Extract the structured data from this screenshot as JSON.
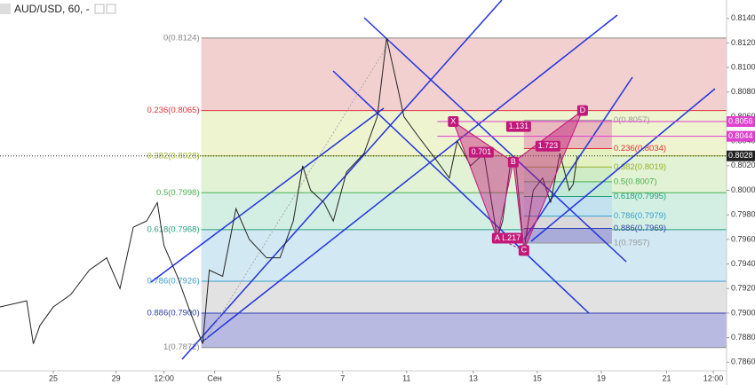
{
  "chart_data": {
    "type": "line",
    "title": "AUD/USD, 60, -",
    "xlim": [
      0,
      545
    ],
    "xticks": [
      {
        "value": 40,
        "label": "25"
      },
      {
        "value": 87,
        "label": "29"
      },
      {
        "value": 123,
        "label": "12:00"
      },
      {
        "value": 161,
        "label": "Сен"
      },
      {
        "value": 209,
        "label": "5"
      },
      {
        "value": 257,
        "label": "7"
      },
      {
        "value": 305,
        "label": "11"
      },
      {
        "value": 355,
        "label": "13"
      },
      {
        "value": 403,
        "label": "15"
      },
      {
        "value": 451,
        "label": "19"
      },
      {
        "value": 500,
        "label": "21"
      },
      {
        "value": 535,
        "label": "12:00"
      }
    ],
    "ylim": [
      0.7853,
      0.8155
    ],
    "yticks": [
      {
        "value": 0.786,
        "label": "0.7860"
      },
      {
        "value": 0.788,
        "label": "0.7880"
      },
      {
        "value": 0.79,
        "label": "0.7900"
      },
      {
        "value": 0.792,
        "label": "0.7920"
      },
      {
        "value": 0.794,
        "label": "0.7940"
      },
      {
        "value": 0.796,
        "label": "0.7960"
      },
      {
        "value": 0.798,
        "label": "0.7980"
      },
      {
        "value": 0.8,
        "label": "0.8000"
      },
      {
        "value": 0.802,
        "label": "0.8020"
      },
      {
        "value": 0.804,
        "label": "0.8040"
      },
      {
        "value": 0.806,
        "label": "0.8060"
      },
      {
        "value": 0.808,
        "label": "0.8080"
      },
      {
        "value": 0.81,
        "label": "0.8100"
      },
      {
        "value": 0.812,
        "label": "0.8120"
      },
      {
        "value": 0.814,
        "label": "0.8140"
      }
    ],
    "series": [
      {
        "color": "#222222",
        "x": [
          0,
          20,
          25,
          30,
          40,
          53,
          67,
          80,
          90,
          100,
          110,
          118,
          123,
          133,
          143,
          152,
          157,
          167,
          177,
          187,
          200,
          210,
          220,
          227,
          233,
          243,
          250,
          260,
          273,
          283,
          290,
          297,
          303,
          313,
          327,
          337,
          343,
          353,
          363,
          373,
          377,
          383,
          387,
          393,
          400,
          407,
          413,
          420,
          427,
          430,
          433
        ],
        "values": [
          0.7905,
          0.791,
          0.7875,
          0.789,
          0.7905,
          0.7915,
          0.7935,
          0.7945,
          0.792,
          0.797,
          0.7975,
          0.799,
          0.7955,
          0.793,
          0.79,
          0.7875,
          0.7935,
          0.793,
          0.7985,
          0.796,
          0.7945,
          0.7945,
          0.7975,
          0.802,
          0.8,
          0.799,
          0.7975,
          0.8015,
          0.803,
          0.806,
          0.8124,
          0.809,
          0.806,
          0.8045,
          0.8025,
          0.801,
          0.804,
          0.802,
          0.803,
          0.7961,
          0.7975,
          0.8023,
          0.802,
          0.7951,
          0.8,
          0.801,
          0.799,
          0.803,
          0.8,
          0.8005,
          0.8028
        ]
      }
    ],
    "fib_left": {
      "xrange": [
        151,
        545
      ],
      "levels": [
        {
          "label": "0(0.8124)",
          "value": 0.8124,
          "color": "#888888",
          "fill": "#f3d0d0"
        },
        {
          "label": "0.236(0.8065)",
          "value": 0.8065,
          "color": "#e0323c",
          "fill": "#eef4cf"
        },
        {
          "label": "0.382(0.8028)",
          "value": 0.8028,
          "color": "#9aae2c",
          "fill": "#e2f2d4"
        },
        {
          "label": "0.5(0.7998)",
          "value": 0.7998,
          "color": "#4caf50",
          "fill": "#d3efe3"
        },
        {
          "label": "0.618(0.7968)",
          "value": 0.7968,
          "color": "#26a07a",
          "fill": "#d2e8f2"
        },
        {
          "label": "0.786(0.7926)",
          "value": 0.7926,
          "color": "#3a9fd0",
          "fill": "#e2e2e2"
        },
        {
          "label": "0.886(0.7900)",
          "value": 0.79,
          "color": "#2f3fb0",
          "fill": "#b9bae2"
        },
        {
          "label": "1(0.7872)",
          "value": 0.7872,
          "color": "#888888"
        }
      ]
    },
    "fib_right": {
      "xrange": [
        393,
        459
      ],
      "levels": [
        {
          "label": "0(0.8057)",
          "value": 0.8057,
          "color": "#999999",
          "fill": "#e8b9bd"
        },
        {
          "label": "0.236(0.8034)",
          "value": 0.8034,
          "color": "#e0323c",
          "fill": "#e3f0c0"
        },
        {
          "label": "0.382(0.8019)",
          "value": 0.8019,
          "color": "#9aae2c",
          "fill": "#cfecc6"
        },
        {
          "label": "0.5(0.8007)",
          "value": 0.8007,
          "color": "#4caf50",
          "fill": "#c3ead6"
        },
        {
          "label": "0.618(0.7995)",
          "value": 0.7995,
          "color": "#26a07a",
          "fill": "#c3e1ee"
        },
        {
          "label": "0.786(0.7979)",
          "value": 0.7979,
          "color": "#3a9fd0",
          "fill": "#d9d9d9"
        },
        {
          "label": "0.886(0.7969)",
          "value": 0.7969,
          "color": "#2f3fb0",
          "fill": "#a9abd9"
        },
        {
          "label": "1(0.7957)",
          "value": 0.7957,
          "color": "#999999"
        }
      ]
    },
    "price_labels": [
      {
        "value": 0.8056,
        "label": "0.8056",
        "color": "#e040d0",
        "from": 328
      },
      {
        "value": 0.8044,
        "label": "0.8044",
        "color": "#e040d0",
        "from": 328
      },
      {
        "value": 0.8028,
        "label": "0.8028",
        "color": "#222222",
        "from": 0
      }
    ],
    "pattern": {
      "color": "#c2187a",
      "points": [
        {
          "label": "X",
          "x": 340,
          "y": 0.8056
        },
        {
          "label": "A",
          "x": 373,
          "y": 0.7961
        },
        {
          "label": "B",
          "x": 385,
          "y": 0.8023
        },
        {
          "label": "C",
          "x": 393,
          "y": 0.7951
        },
        {
          "label": "D",
          "x": 437,
          "y": 0.8065
        }
      ],
      "ratios": [
        {
          "label": "0.701",
          "x": 361,
          "y": 0.8031
        },
        {
          "label": "1.131",
          "x": 389,
          "y": 0.8052
        },
        {
          "label": "1.723",
          "x": 411,
          "y": 0.8036
        },
        {
          "label": "1.217",
          "x": 383,
          "y": 0.7961
        }
      ]
    }
  }
}
